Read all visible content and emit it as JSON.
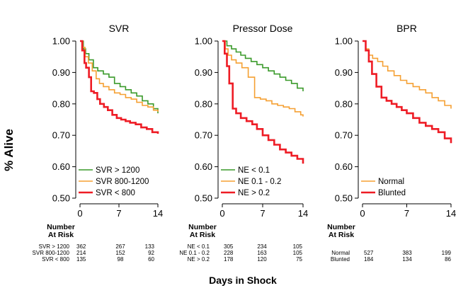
{
  "figure": {
    "ylabel": "% Alive",
    "xlabel": "Days in Shock",
    "risk_title_line1": "Number",
    "risk_title_line2": "At Risk"
  },
  "chart_data": [
    {
      "type": "line",
      "title": "SVR",
      "xlim": [
        0,
        14
      ],
      "ylim": [
        0.5,
        1.0
      ],
      "xticks": [
        "0",
        "7",
        "14"
      ],
      "yticks": [
        "0.50",
        "0.60",
        "0.70",
        "0.80",
        "0.90",
        "1.00"
      ],
      "grid": false,
      "legend_position": "bottom-left",
      "series": [
        {
          "name": "SVR > 1200",
          "color": "#3a9a2a",
          "x": [
            0,
            0.6,
            1.0,
            1.6,
            2.4,
            3.2,
            4.2,
            5.2,
            6.2,
            7.2,
            8.2,
            9.2,
            10.2,
            11.2,
            12.2,
            13.2,
            14
          ],
          "y": [
            1.0,
            0.975,
            0.96,
            0.94,
            0.915,
            0.905,
            0.895,
            0.885,
            0.865,
            0.855,
            0.845,
            0.835,
            0.825,
            0.81,
            0.8,
            0.785,
            0.77
          ]
        },
        {
          "name": "SVR 800-1200",
          "color": "#f5a033",
          "x": [
            0,
            0.5,
            0.9,
            1.5,
            2.2,
            2.9,
            3.5,
            4.2,
            5.2,
            6.2,
            7.2,
            8.2,
            9.2,
            10.2,
            11.2,
            12.2,
            13.2,
            14
          ],
          "y": [
            1.0,
            0.98,
            0.95,
            0.93,
            0.905,
            0.88,
            0.865,
            0.855,
            0.845,
            0.835,
            0.83,
            0.82,
            0.815,
            0.805,
            0.795,
            0.79,
            0.78,
            0.775
          ]
        },
        {
          "name": "SVR < 800",
          "color": "#ee1c25",
          "x": [
            0,
            0.4,
            0.8,
            1.1,
            1.6,
            2.0,
            2.5,
            3.1,
            3.6,
            4.3,
            5.0,
            5.8,
            6.6,
            7.4,
            8.2,
            9.0,
            10.0,
            11.0,
            12.0,
            13.0,
            14
          ],
          "y": [
            1.0,
            0.97,
            0.93,
            0.915,
            0.885,
            0.84,
            0.835,
            0.815,
            0.8,
            0.79,
            0.78,
            0.765,
            0.755,
            0.75,
            0.745,
            0.74,
            0.735,
            0.725,
            0.72,
            0.71,
            0.705
          ]
        }
      ],
      "risk_table": {
        "rows": [
          {
            "label": "SVR > 1200",
            "values": [
              "362",
              "267",
              "133"
            ]
          },
          {
            "label": "SVR 800-1200",
            "values": [
              "214",
              "152",
              "92"
            ]
          },
          {
            "label": "SVR < 800",
            "values": [
              "135",
              "98",
              "60"
            ]
          }
        ]
      }
    },
    {
      "type": "line",
      "title": "Pressor Dose",
      "xlim": [
        0,
        14
      ],
      "ylim": [
        0.5,
        1.0
      ],
      "xticks": [
        "0",
        "7",
        "14"
      ],
      "yticks": [
        "0.50",
        "0.60",
        "0.70",
        "0.80",
        "0.90",
        "1.00"
      ],
      "grid": false,
      "legend_position": "bottom-left",
      "series": [
        {
          "name": "NE < 0.1",
          "color": "#3a9a2a",
          "x": [
            0,
            0.8,
            1.6,
            2.4,
            3.2,
            4.0,
            5.0,
            6.0,
            7.0,
            8.0,
            9.0,
            10.0,
            11.0,
            12.0,
            13.0,
            14
          ],
          "y": [
            1.0,
            0.985,
            0.975,
            0.965,
            0.955,
            0.945,
            0.935,
            0.925,
            0.915,
            0.905,
            0.895,
            0.885,
            0.875,
            0.865,
            0.85,
            0.84
          ]
        },
        {
          "name": "NE 0.1 - 0.2",
          "color": "#f5a033",
          "x": [
            0,
            0.5,
            1.0,
            1.6,
            2.4,
            3.4,
            4.5,
            5.6,
            6.6,
            7.6,
            8.6,
            9.6,
            10.6,
            11.6,
            12.6,
            13.6,
            14
          ],
          "y": [
            1.0,
            0.975,
            0.955,
            0.94,
            0.93,
            0.915,
            0.885,
            0.82,
            0.815,
            0.81,
            0.8,
            0.795,
            0.79,
            0.785,
            0.775,
            0.765,
            0.76
          ]
        },
        {
          "name": "NE > 0.2",
          "color": "#ee1c25",
          "x": [
            0,
            0.4,
            0.8,
            1.2,
            1.8,
            2.4,
            3.2,
            4.2,
            5.2,
            6.0,
            7.0,
            8.0,
            9.0,
            10.0,
            11.0,
            12.0,
            13.0,
            14
          ],
          "y": [
            1.0,
            0.96,
            0.92,
            0.865,
            0.785,
            0.77,
            0.755,
            0.745,
            0.735,
            0.72,
            0.7,
            0.685,
            0.67,
            0.655,
            0.645,
            0.635,
            0.625,
            0.61
          ]
        }
      ],
      "risk_table": {
        "rows": [
          {
            "label": "NE < 0.1",
            "values": [
              "305",
              "234",
              "105"
            ]
          },
          {
            "label": "NE 0.1 - 0.2",
            "values": [
              "228",
              "163",
              "105"
            ]
          },
          {
            "label": "NE > 0.2",
            "values": [
              "178",
              "120",
              "75"
            ]
          }
        ]
      }
    },
    {
      "type": "line",
      "title": "BPR",
      "xlim": [
        0,
        14
      ],
      "ylim": [
        0.5,
        1.0
      ],
      "xticks": [
        "0",
        "7",
        "14"
      ],
      "yticks": [
        "0.50",
        "0.60",
        "0.70",
        "0.80",
        "0.90",
        "1.00"
      ],
      "grid": false,
      "legend_position": "bottom-left",
      "series": [
        {
          "name": "Normal",
          "color": "#f5a033",
          "x": [
            0,
            0.5,
            1.0,
            1.6,
            2.4,
            3.2,
            4.0,
            5.0,
            6.0,
            7.0,
            8.0,
            9.0,
            10.0,
            11.0,
            12.0,
            13.0,
            14
          ],
          "y": [
            1.0,
            0.975,
            0.955,
            0.945,
            0.935,
            0.92,
            0.905,
            0.89,
            0.875,
            0.865,
            0.855,
            0.845,
            0.835,
            0.82,
            0.81,
            0.795,
            0.785
          ]
        },
        {
          "name": "Blunted",
          "color": "#ee1c25",
          "x": [
            0,
            0.5,
            1.0,
            1.5,
            2.2,
            3.0,
            3.8,
            4.6,
            5.4,
            6.2,
            7.0,
            8.0,
            9.0,
            10.0,
            11.0,
            12.0,
            13.0,
            14
          ],
          "y": [
            1.0,
            0.97,
            0.935,
            0.895,
            0.855,
            0.82,
            0.81,
            0.8,
            0.79,
            0.78,
            0.77,
            0.755,
            0.74,
            0.73,
            0.72,
            0.71,
            0.69,
            0.675
          ]
        }
      ],
      "risk_table": {
        "rows": [
          {
            "label": "Normal",
            "values": [
              "527",
              "383",
              "199"
            ]
          },
          {
            "label": "Blunted",
            "values": [
              "184",
              "134",
              "86"
            ]
          }
        ]
      }
    }
  ]
}
